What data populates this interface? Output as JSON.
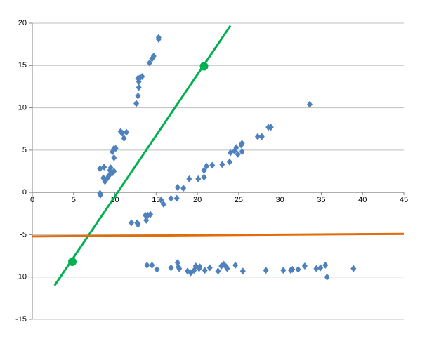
{
  "chart_data": {
    "type": "scatter",
    "xlim": [
      0,
      45
    ],
    "xticks": [
      0,
      5,
      10,
      15,
      20,
      25,
      30,
      35,
      40,
      45
    ],
    "ylim": [
      -15,
      20
    ],
    "yticks": [
      -15,
      -10,
      -5,
      0,
      5,
      10,
      15,
      20
    ],
    "grid": true,
    "series": [
      {
        "mode": "markers",
        "marker": "diamond",
        "color": "#4f81bd",
        "x": [
          8.25,
          8.2,
          8.2,
          8.7,
          8.6,
          8.8,
          9.1,
          9.3,
          9.4,
          9.7,
          9.5,
          9.9,
          9.7,
          9.9,
          10.1,
          9.9,
          10.7,
          10.9,
          11.4,
          11.1,
          12.6,
          12.8,
          12.9,
          12.9,
          13.0,
          13.3,
          12.8,
          14.2,
          14.5,
          14.7,
          15.3,
          15.3,
          12.0,
          12.8,
          12.7,
          13.7,
          14.3,
          13.8,
          14.0,
          15.6,
          15.9,
          16.8,
          17.5,
          17.6,
          18.3,
          19.0,
          20.1,
          20.8,
          20.8,
          21.1,
          21.8,
          23.0,
          23.9,
          24.0,
          24.5,
          24.7,
          24.9,
          25.4,
          25.4,
          25.3,
          27.3,
          27.8,
          28.6,
          28.9,
          33.6,
          13.9,
          14.5,
          15.1,
          16.8,
          17.7,
          17.6,
          17.8,
          18.8,
          19.2,
          19.6,
          19.8,
          20.2,
          20.3,
          20.9,
          21.5,
          22.5,
          22.9,
          23.2,
          23.6,
          23.5,
          24.6,
          25.5,
          28.3,
          30.4,
          31.3,
          31.5,
          32.2,
          33.0,
          34.4,
          34.9,
          35.5,
          35.7,
          38.9
        ],
        "values": [
          -0.3,
          -0.1,
          2.8,
          3.0,
          1.7,
          1.3,
          1.7,
          2.0,
          2.6,
          2.3,
          2.9,
          2.5,
          4.8,
          5.2,
          5.2,
          4.1,
          7.2,
          7.0,
          7.1,
          6.4,
          10.5,
          11.4,
          12.4,
          13.1,
          13.5,
          13.7,
          13.5,
          15.3,
          15.8,
          16.1,
          18.1,
          18.3,
          -3.6,
          -3.8,
          -3.6,
          -2.7,
          -2.6,
          -3.3,
          -2.7,
          -0.9,
          -1.4,
          -0.7,
          -0.7,
          0.6,
          0.5,
          1.6,
          1.6,
          1.8,
          2.6,
          3.1,
          3.2,
          3.3,
          3.6,
          4.7,
          4.9,
          5.3,
          4.5,
          4.8,
          5.8,
          5.6,
          6.6,
          6.6,
          7.7,
          7.7,
          10.4,
          -8.6,
          -8.6,
          -9.1,
          -8.9,
          -8.8,
          -8.3,
          -9.0,
          -9.3,
          -9.5,
          -9.2,
          -8.7,
          -9.0,
          -8.8,
          -9.2,
          -8.9,
          -9.3,
          -8.7,
          -8.5,
          -9.0,
          -8.8,
          -8.6,
          -9.3,
          -9.2,
          -9.2,
          -9.2,
          -9.1,
          -9.1,
          -8.7,
          -9.0,
          -8.9,
          -8.6,
          -10.0,
          -9.0
        ]
      },
      {
        "mode": "line",
        "color": "#00b050",
        "x": [
          2.7,
          24.0
        ],
        "values": [
          -11.0,
          19.7
        ]
      },
      {
        "mode": "markers",
        "marker": "circle",
        "color": "#00b050",
        "x": [
          4.85,
          20.8
        ],
        "values": [
          -8.2,
          14.9
        ]
      },
      {
        "mode": "line",
        "color": "#e36c09",
        "x": [
          0,
          45
        ],
        "values": [
          -5.2,
          -4.9
        ]
      }
    ]
  }
}
